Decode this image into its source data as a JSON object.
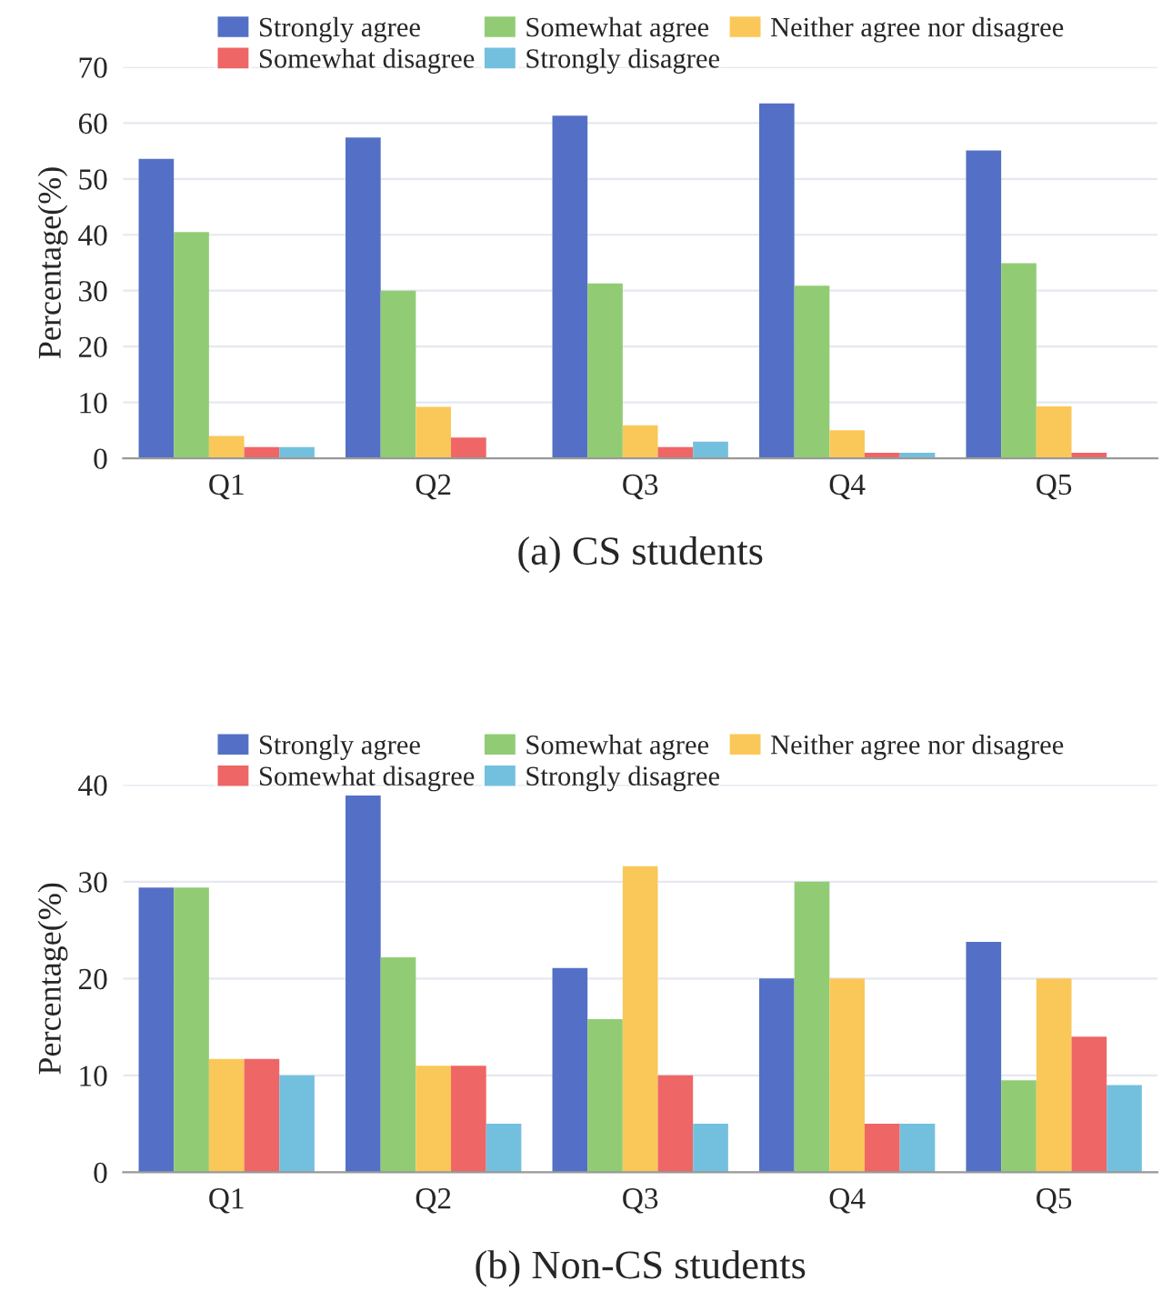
{
  "chart_data": [
    {
      "type": "bar",
      "title": "(a) CS students",
      "ylabel": "Percentage(%)",
      "categories": [
        "Q1",
        "Q2",
        "Q3",
        "Q4",
        "Q5"
      ],
      "series": [
        {
          "name": "Strongly agree",
          "color": "#5470c6",
          "values": [
            53.6,
            57.4,
            61.3,
            63.5,
            55.1
          ]
        },
        {
          "name": "Somewhat agree",
          "color": "#91cc75",
          "values": [
            40.5,
            30,
            31.3,
            30.9,
            34.9
          ]
        },
        {
          "name": "Neither agree nor disagree",
          "color": "#fac858",
          "values": [
            4,
            9.2,
            5.9,
            5,
            9.3
          ]
        },
        {
          "name": "Somewhat disagree",
          "color": "#ee6666",
          "values": [
            2,
            3.7,
            2,
            1,
            1
          ]
        },
        {
          "name": "Strongly disagree",
          "color": "#73c0de",
          "values": [
            2,
            0,
            3,
            1,
            0
          ]
        }
      ],
      "ylim": [
        0,
        70
      ],
      "yticks": [
        0,
        10,
        20,
        30,
        40,
        50,
        60,
        70
      ],
      "grid": "y",
      "legend": "top"
    },
    {
      "type": "bar",
      "title": "(b) Non-CS students",
      "ylabel": "Percentage(%)",
      "categories": [
        "Q1",
        "Q2",
        "Q3",
        "Q4",
        "Q5"
      ],
      "series": [
        {
          "name": "Strongly agree",
          "color": "#5470c6",
          "values": [
            29.4,
            38.9,
            21.1,
            20,
            23.8
          ]
        },
        {
          "name": "Somewhat agree",
          "color": "#91cc75",
          "values": [
            29.4,
            22.2,
            15.8,
            30,
            9.5
          ]
        },
        {
          "name": "Neither agree nor disagree",
          "color": "#fac858",
          "values": [
            11.7,
            11,
            31.6,
            20,
            20
          ]
        },
        {
          "name": "Somewhat disagree",
          "color": "#ee6666",
          "values": [
            11.7,
            11,
            10,
            5,
            14
          ]
        },
        {
          "name": "Strongly disagree",
          "color": "#73c0de",
          "values": [
            10,
            5,
            5,
            5,
            9
          ]
        }
      ],
      "ylim": [
        0,
        40
      ],
      "yticks": [
        0,
        10,
        20,
        30,
        40
      ],
      "grid": "y",
      "legend": "top"
    }
  ]
}
